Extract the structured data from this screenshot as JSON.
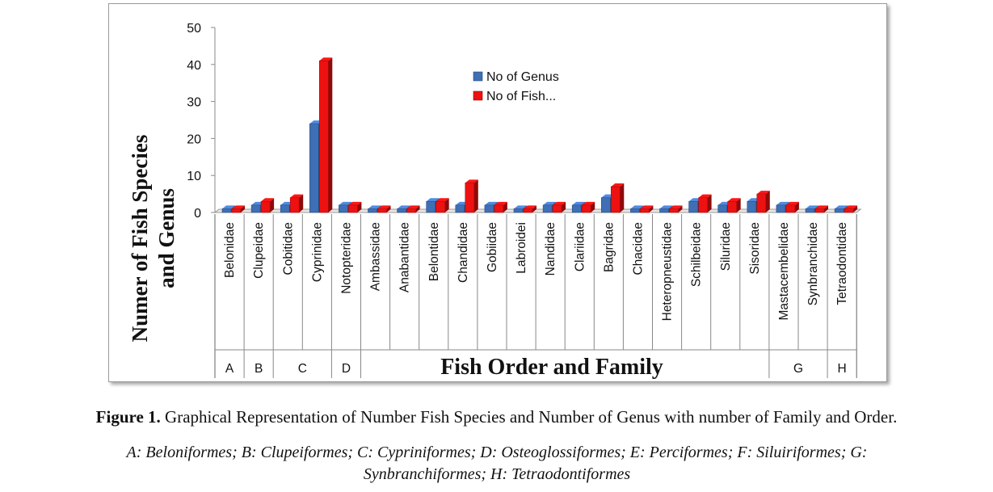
{
  "chart_data": {
    "type": "bar",
    "categories": [
      "Belonidae",
      "Clupeidae",
      "Cobitidae",
      "Cyprinidae",
      "Notopteridae",
      "Ambassidae",
      "Anabantidae",
      "Belontidae",
      "Chandidae",
      "Gobiidae",
      "Labroidei",
      "Nandidae",
      "Clariidae",
      "Bagridae",
      "Chacidae",
      "Heteropneustidae",
      "Schilbeidae",
      "Siluridae",
      "Sisoridae",
      "Mastacembelidae",
      "Synbranchidae",
      "Tetraodontidae"
    ],
    "series": [
      {
        "name": "No of Genus",
        "color": "#3f6fb5",
        "values": [
          1,
          2,
          2,
          24,
          2,
          1,
          1,
          3,
          2,
          2,
          1,
          2,
          2,
          4,
          1,
          1,
          3,
          2,
          3,
          2,
          1,
          1
        ]
      },
      {
        "name": "No of Fish...",
        "color": "#ee1111",
        "values": [
          1,
          3,
          4,
          41,
          2,
          1,
          1,
          3,
          8,
          2,
          1,
          2,
          2,
          7,
          1,
          1,
          4,
          3,
          5,
          2,
          1,
          1
        ]
      }
    ],
    "yticks": [
      0,
      10,
      20,
      30,
      40,
      50
    ],
    "ylim": [
      0,
      50
    ],
    "ylabel_line1": "Numer of Fish Species",
    "ylabel_line2": "and Genus",
    "xlabel": "Fish Order and Family",
    "order_groups": [
      {
        "label": "A",
        "count": 1
      },
      {
        "label": "B",
        "count": 1
      },
      {
        "label": "C",
        "count": 2
      },
      {
        "label": "D",
        "count": 1
      },
      {
        "label": "",
        "count": 14
      },
      {
        "label": "G",
        "count": 2
      },
      {
        "label": "H",
        "count": 1
      }
    ],
    "legend_position": "top-center",
    "grid": false
  },
  "caption": {
    "label": "Figure 1.",
    "text": " Graphical Representation of Number Fish Species and Number of Genus with number of Family and Order."
  },
  "footnote": {
    "line1": "A: Beloniformes; B: Clupeiformes; C: Cypriniformes; D: Osteoglossiformes; E: Perciformes; F: Siluiriformes; G:",
    "line2": "Synbranchiformes; H: Tetraodontiformes"
  }
}
